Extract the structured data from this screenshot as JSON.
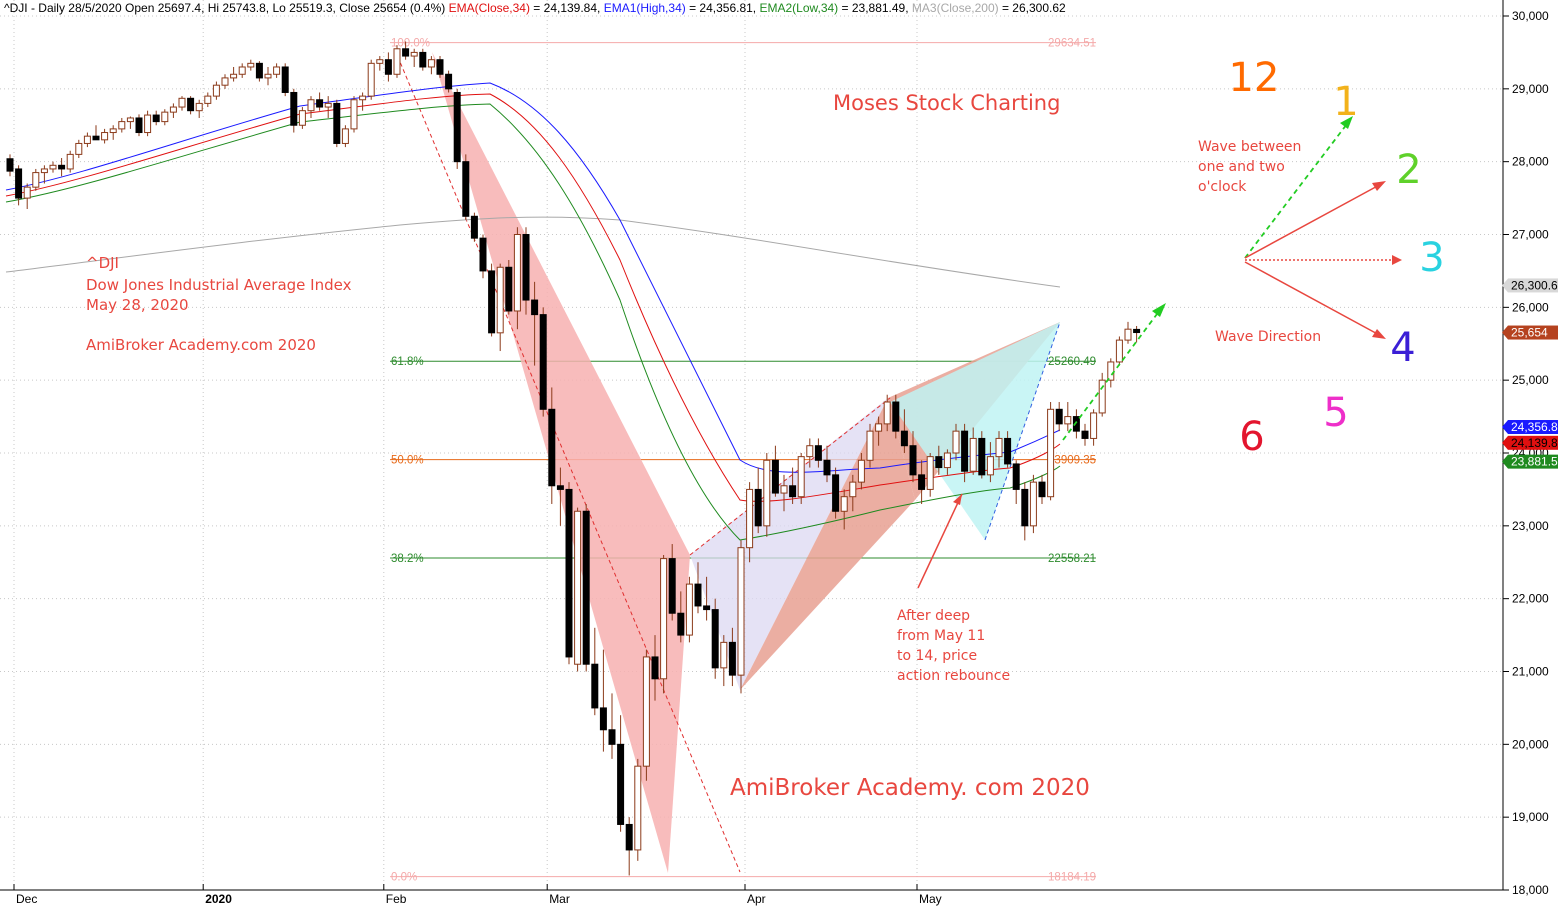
{
  "header": {
    "ticker_line": "^DJI - Daily 28/5/2020 Open 25697.4, Hi 25743.8, Lo 25519.3, Close 25654 (0.4%)",
    "ema_label": "EMA(Close,34)",
    "ema_value": " = 24,139.84, ",
    "ema1_label": "EMA1(High,34)",
    "ema1_value": " = 24,356.81, ",
    "ema2_label": "EMA2(Low,34)",
    "ema2_value": " = 23,881.49, ",
    "ma3_label": "MA3(Close,200)",
    "ma3_value": " = 26,300.62"
  },
  "annotations": {
    "ticker": "^DJI",
    "index_name": "Dow Jones Industrial Average Index",
    "date": "May 28, 2020",
    "site_small": "AmiBroker Academy.com  2020",
    "brand": "Moses Stock Charting",
    "site_big": "AmiBroker Academy. com  2020",
    "wave_between": [
      "Wave between",
      "one and two",
      "o'clock"
    ],
    "wave_direction": "Wave Direction",
    "after_deep": [
      "After deep",
      "from May 11",
      "to 14, price",
      "action rebounce"
    ]
  },
  "clock": {
    "numbers": [
      {
        "label": "12",
        "color": "#ff6a00"
      },
      {
        "label": "1",
        "color": "#f2b21b"
      },
      {
        "label": "2",
        "color": "#5fd12a"
      },
      {
        "label": "3",
        "color": "#29d2e0"
      },
      {
        "label": "4",
        "color": "#3b1fd6"
      },
      {
        "label": "5",
        "color": "#ee2fc9"
      },
      {
        "label": "6",
        "color": "#e3152e"
      }
    ]
  },
  "fib_levels": [
    {
      "pct": "100.0%",
      "value": "29634.51",
      "price": 29634.51,
      "color": "#f4a9a9"
    },
    {
      "pct": "61.8%",
      "value": "25260.49",
      "price": 25260.49,
      "color": "#2e8b2e"
    },
    {
      "pct": "50.0%",
      "value": "23909.35",
      "price": 23909.35,
      "color": "#e76a1a"
    },
    {
      "pct": "38.2%",
      "value": "22558.21",
      "price": 22558.21,
      "color": "#2e8b2e"
    },
    {
      "pct": "0.0%",
      "value": "18184.19",
      "price": 18184.19,
      "color": "#f4a9a9"
    }
  ],
  "badges": [
    {
      "text": "26,300.6",
      "price": 26300.62,
      "bg": "#d8d8d8",
      "fg": "#000000"
    },
    {
      "text": "25,654",
      "price": 25654,
      "bg": "#b5421f",
      "fg": "#ffffff"
    },
    {
      "text": "24,356.8",
      "price": 24356.81,
      "bg": "#1a1aff",
      "fg": "#ffffff"
    },
    {
      "text": "24,139.8",
      "price": 24139.84,
      "bg": "#e01010",
      "fg": "#000000"
    },
    {
      "text": "23,881.5",
      "price": 23881.49,
      "bg": "#1f8a1f",
      "fg": "#ffffff"
    }
  ],
  "chart_data": {
    "type": "candlestick",
    "title": "^DJI - Daily 28/5/2020",
    "y_range": [
      18000,
      30000
    ],
    "y_ticks": [
      "30,000",
      "29,000",
      "28,000",
      "27,000",
      "26,000",
      "25,000",
      "24,000",
      "23,000",
      "22,000",
      "21,000",
      "20,000",
      "19,000",
      "18,000"
    ],
    "x_ticks": [
      {
        "label": "Dec",
        "bold": false,
        "bar": 0
      },
      {
        "label": "2020",
        "bold": true,
        "bar": 22
      },
      {
        "label": "Feb",
        "bold": false,
        "bar": 43
      },
      {
        "label": "Mar",
        "bold": false,
        "bar": 62
      },
      {
        "label": "Apr",
        "bold": false,
        "bar": 85
      },
      {
        "label": "May",
        "bold": false,
        "bar": 105
      }
    ],
    "colors": {
      "ema_close": "#e01010",
      "ema_high": "#1a1aff",
      "ema_low": "#1f8a1f",
      "ma200": "#a8a8a8",
      "up_candle": "#ffffff",
      "down_candle": "#000000",
      "wick": "#8b3a1a"
    },
    "series": [
      {
        "name": "EMA(Close,34)",
        "last": 24139.84
      },
      {
        "name": "EMA1(High,34)",
        "last": 24356.81
      },
      {
        "name": "EMA2(Low,34)",
        "last": 23881.49
      },
      {
        "name": "MA3(Close,200)",
        "last": 26300.62
      }
    ],
    "ohlc": [
      [
        28040,
        28100,
        27800,
        27870
      ],
      [
        27900,
        27950,
        27400,
        27500
      ],
      [
        27500,
        27700,
        27350,
        27650
      ],
      [
        27650,
        27900,
        27600,
        27850
      ],
      [
        27850,
        27950,
        27700,
        27900
      ],
      [
        27900,
        28000,
        27850,
        27950
      ],
      [
        27950,
        28050,
        27800,
        27900
      ],
      [
        27900,
        28150,
        27850,
        28100
      ],
      [
        28100,
        28300,
        28050,
        28250
      ],
      [
        28250,
        28400,
        28200,
        28350
      ],
      [
        28350,
        28500,
        28300,
        28300
      ],
      [
        28300,
        28450,
        28250,
        28400
      ],
      [
        28400,
        28500,
        28300,
        28450
      ],
      [
        28450,
        28600,
        28400,
        28550
      ],
      [
        28550,
        28620,
        28450,
        28600
      ],
      [
        28600,
        28650,
        28350,
        28400
      ],
      [
        28400,
        28700,
        28350,
        28640
      ],
      [
        28640,
        28700,
        28500,
        28550
      ],
      [
        28550,
        28720,
        28500,
        28680
      ],
      [
        28680,
        28800,
        28600,
        28750
      ],
      [
        28750,
        28900,
        28700,
        28870
      ],
      [
        28870,
        28900,
        28650,
        28700
      ],
      [
        28700,
        28850,
        28600,
        28800
      ],
      [
        28800,
        28950,
        28750,
        28900
      ],
      [
        28900,
        29100,
        28850,
        29050
      ],
      [
        29050,
        29200,
        29000,
        29150
      ],
      [
        29150,
        29300,
        29100,
        29200
      ],
      [
        29200,
        29350,
        29150,
        29300
      ],
      [
        29300,
        29400,
        29250,
        29350
      ],
      [
        29350,
        29380,
        29100,
        29150
      ],
      [
        29150,
        29300,
        29050,
        29200
      ],
      [
        29200,
        29350,
        29150,
        29300
      ],
      [
        29300,
        29350,
        28900,
        28950
      ],
      [
        28950,
        29000,
        28400,
        28500
      ],
      [
        28500,
        28750,
        28450,
        28700
      ],
      [
        28700,
        28900,
        28600,
        28850
      ],
      [
        28850,
        28950,
        28700,
        28750
      ],
      [
        28750,
        28900,
        28600,
        28800
      ],
      [
        28800,
        28850,
        28200,
        28250
      ],
      [
        28250,
        28500,
        28200,
        28450
      ],
      [
        28450,
        28900,
        28400,
        28850
      ],
      [
        28850,
        28950,
        28700,
        28900
      ],
      [
        28900,
        29400,
        28850,
        29350
      ],
      [
        29350,
        29450,
        29250,
        29400
      ],
      [
        29400,
        29500,
        29100,
        29200
      ],
      [
        29200,
        29600,
        29150,
        29550
      ],
      [
        29550,
        29650,
        29400,
        29450
      ],
      [
        29450,
        29550,
        29300,
        29500
      ],
      [
        29500,
        29550,
        29250,
        29300
      ],
      [
        29300,
        29450,
        29200,
        29400
      ],
      [
        29400,
        29450,
        29150,
        29200
      ],
      [
        29200,
        29250,
        28950,
        29000
      ],
      [
        28950,
        29000,
        27900,
        28000
      ],
      [
        28000,
        28100,
        27200,
        27250
      ],
      [
        27250,
        27300,
        26900,
        26950
      ],
      [
        26950,
        27000,
        26400,
        26500
      ],
      [
        26500,
        26600,
        25600,
        25650
      ],
      [
        25650,
        26600,
        25400,
        26550
      ],
      [
        26550,
        26650,
        25900,
        25950
      ],
      [
        25950,
        27100,
        25700,
        27000
      ],
      [
        27000,
        27100,
        25900,
        26100
      ],
      [
        26100,
        26350,
        25200,
        25900
      ],
      [
        25900,
        26000,
        24500,
        24600
      ],
      [
        24600,
        24900,
        23300,
        23550
      ],
      [
        23550,
        23800,
        23000,
        23500
      ],
      [
        23500,
        23600,
        21100,
        21200
      ],
      [
        21100,
        23250,
        21000,
        23200
      ],
      [
        23200,
        23300,
        21000,
        21100
      ],
      [
        21100,
        21600,
        20400,
        20500
      ],
      [
        20500,
        21300,
        19900,
        20200
      ],
      [
        20200,
        20700,
        19800,
        20000
      ],
      [
        20000,
        20400,
        18800,
        18900
      ],
      [
        18900,
        19000,
        18200,
        18550
      ],
      [
        18550,
        19800,
        18400,
        19700
      ],
      [
        19700,
        21300,
        19500,
        21200
      ],
      [
        21200,
        21500,
        20600,
        20900
      ],
      [
        20900,
        22600,
        20700,
        22550
      ],
      [
        22550,
        22750,
        21700,
        21800
      ],
      [
        21800,
        22100,
        21400,
        21500
      ],
      [
        21500,
        22300,
        21400,
        22200
      ],
      [
        22200,
        22500,
        21800,
        21900
      ],
      [
        21900,
        22300,
        21700,
        21850
      ],
      [
        21850,
        22000,
        20900,
        21050
      ],
      [
        21050,
        21500,
        20800,
        21400
      ],
      [
        21400,
        21600,
        20800,
        20950
      ],
      [
        20950,
        22800,
        20700,
        22700
      ],
      [
        22700,
        23600,
        22500,
        23500
      ],
      [
        23500,
        23800,
        22900,
        23000
      ],
      [
        23000,
        24000,
        22850,
        23900
      ],
      [
        23900,
        24100,
        23400,
        23450
      ],
      [
        23450,
        23700,
        23200,
        23550
      ],
      [
        23550,
        23800,
        23300,
        23400
      ],
      [
        23400,
        24000,
        23300,
        23950
      ],
      [
        23950,
        24200,
        23800,
        24100
      ],
      [
        24100,
        24200,
        23800,
        23900
      ],
      [
        23900,
        24100,
        23600,
        23700
      ],
      [
        23700,
        23800,
        23100,
        23200
      ],
      [
        23200,
        23500,
        22950,
        23400
      ],
      [
        23400,
        23700,
        23200,
        23600
      ],
      [
        23600,
        24000,
        23500,
        23900
      ],
      [
        23900,
        24400,
        23800,
        24300
      ],
      [
        24300,
        24500,
        24100,
        24400
      ],
      [
        24400,
        24800,
        24300,
        24700
      ],
      [
        24700,
        24800,
        24200,
        24300
      ],
      [
        24300,
        24600,
        24000,
        24100
      ],
      [
        24100,
        24300,
        23600,
        23700
      ],
      [
        23700,
        23900,
        23300,
        23500
      ],
      [
        23500,
        24000,
        23400,
        23950
      ],
      [
        23950,
        24100,
        23700,
        23800
      ],
      [
        23800,
        24050,
        23700,
        24000
      ],
      [
        24000,
        24400,
        23900,
        24300
      ],
      [
        24300,
        24400,
        23600,
        23750
      ],
      [
        23750,
        24350,
        23700,
        24200
      ],
      [
        24200,
        24300,
        23650,
        23700
      ],
      [
        23700,
        24150,
        23600,
        23950
      ],
      [
        23950,
        24300,
        23800,
        24200
      ],
      [
        24200,
        24300,
        23800,
        23850
      ],
      [
        23850,
        23900,
        23300,
        23500
      ],
      [
        23500,
        23600,
        22800,
        23000
      ],
      [
        23000,
        23700,
        22900,
        23600
      ],
      [
        23600,
        23700,
        23300,
        23400
      ],
      [
        23400,
        24700,
        23350,
        24600
      ],
      [
        24600,
        24700,
        24300,
        24400
      ],
      [
        24400,
        24700,
        24300,
        24500
      ],
      [
        24500,
        24600,
        24200,
        24300
      ],
      [
        24300,
        24400,
        24100,
        24200
      ],
      [
        24200,
        24600,
        24100,
        24550
      ],
      [
        24550,
        25100,
        24500,
        25000
      ],
      [
        25000,
        25300,
        24900,
        25250
      ],
      [
        25250,
        25600,
        25200,
        25550
      ],
      [
        25550,
        25800,
        25500,
        25700
      ],
      [
        25697,
        25744,
        25519,
        25654
      ]
    ]
  }
}
